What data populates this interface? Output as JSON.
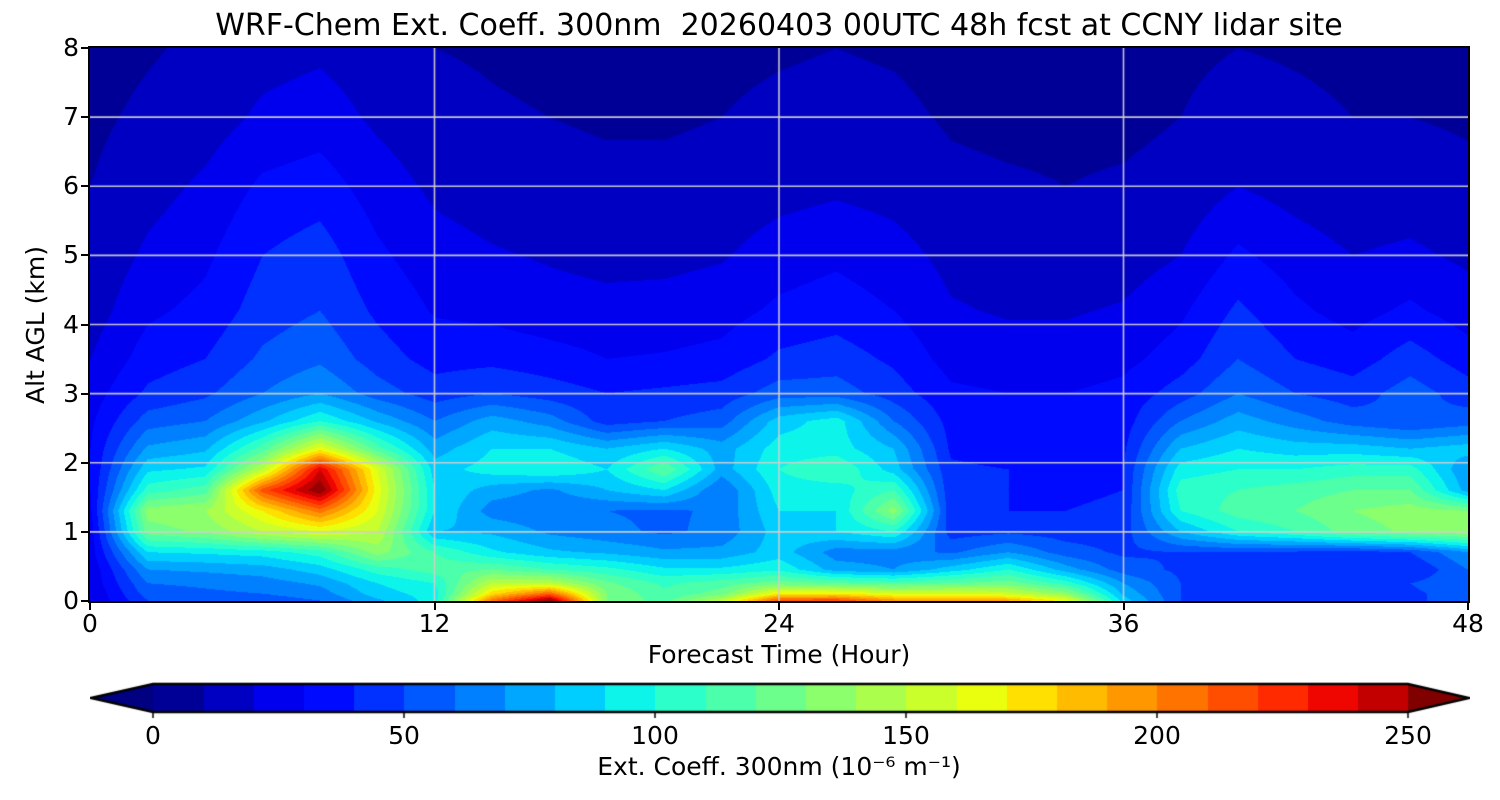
{
  "title": "WRF-Chem Ext. Coeff. 300nm  20260403 00UTC 48h fcst at CCNY lidar site",
  "axes": {
    "xlabel": "Forecast Time (Hour)",
    "ylabel": "Alt AGL (km)",
    "x_ticks": [
      0,
      12,
      24,
      36,
      48
    ],
    "y_ticks": [
      0,
      1,
      2,
      3,
      4,
      5,
      6,
      7,
      8
    ]
  },
  "colorbar": {
    "label": "Ext. Coeff. 300nm  (10⁻⁶ m⁻¹)",
    "ticks": [
      0,
      50,
      100,
      150,
      200,
      250
    ],
    "tick_min": 0,
    "tick_max": 250,
    "vmin": 0,
    "vmax": 260,
    "level_step": 10,
    "colormap": "jet",
    "extend": "both",
    "under_color": "#000080",
    "over_color": "#800000"
  },
  "chart_data": {
    "type": "heatmap",
    "title": "WRF-Chem Ext. Coeff. 300nm  20260403 00UTC 48h fcst at CCNY lidar site",
    "xlabel": "Forecast Time (Hour)",
    "ylabel": "Alt AGL (km)",
    "xlim": [
      0,
      48
    ],
    "ylim": [
      0,
      8
    ],
    "grid": true,
    "grid_x": [
      12,
      24,
      36
    ],
    "grid_y": [
      1,
      2,
      3,
      4,
      5,
      6,
      7
    ],
    "units": "10^-6 m^-1",
    "x": [
      0,
      2,
      4,
      6,
      8,
      10,
      12,
      14,
      16,
      18,
      20,
      22,
      24,
      26,
      28,
      30,
      32,
      34,
      36,
      38,
      40,
      42,
      44,
      46,
      48
    ],
    "y": [
      0,
      0.1,
      0.25,
      0.45,
      0.7,
      1.0,
      1.3,
      1.6,
      1.9,
      2.2,
      2.6,
      3.0,
      3.5,
      4.2,
      5.0,
      6.0,
      7.0,
      8.0
    ],
    "values_layout": "rows follow y (altitude km, ascending), columns follow x (forecast hour)",
    "values": [
      [
        20,
        50,
        55,
        55,
        60,
        78,
        95,
        205,
        258,
        130,
        115,
        150,
        215,
        218,
        195,
        195,
        190,
        165,
        85,
        50,
        48,
        45,
        45,
        48,
        55
      ],
      [
        20,
        55,
        58,
        60,
        65,
        85,
        95,
        175,
        210,
        130,
        112,
        125,
        170,
        170,
        160,
        160,
        155,
        135,
        78,
        50,
        48,
        45,
        45,
        48,
        55
      ],
      [
        22,
        60,
        62,
        65,
        72,
        90,
        100,
        150,
        150,
        122,
        108,
        115,
        125,
        120,
        115,
        120,
        125,
        105,
        70,
        50,
        47,
        45,
        45,
        50,
        58
      ],
      [
        22,
        70,
        72,
        75,
        85,
        105,
        115,
        120,
        110,
        103,
        92,
        92,
        98,
        75,
        70,
        85,
        100,
        75,
        55,
        48,
        45,
        42,
        40,
        40,
        60
      ],
      [
        25,
        90,
        92,
        95,
        105,
        135,
        110,
        92,
        82,
        78,
        72,
        73,
        85,
        65,
        65,
        58,
        70,
        55,
        48,
        50,
        50,
        48,
        45,
        50,
        70
      ],
      [
        25,
        125,
        132,
        150,
        160,
        150,
        80,
        78,
        68,
        63,
        58,
        63,
        85,
        90,
        100,
        45,
        48,
        45,
        45,
        80,
        100,
        110,
        125,
        132,
        138
      ],
      [
        28,
        135,
        140,
        170,
        205,
        160,
        90,
        65,
        62,
        60,
        58,
        62,
        90,
        90,
        135,
        42,
        40,
        40,
        42,
        100,
        115,
        120,
        130,
        135,
        130
      ],
      [
        30,
        105,
        115,
        215,
        260,
        165,
        90,
        75,
        68,
        80,
        90,
        60,
        95,
        95,
        110,
        42,
        40,
        38,
        40,
        105,
        110,
        115,
        120,
        120,
        75
      ],
      [
        30,
        88,
        92,
        150,
        240,
        160,
        85,
        95,
        100,
        90,
        120,
        75,
        100,
        110,
        85,
        42,
        40,
        38,
        40,
        95,
        100,
        100,
        105,
        105,
        70
      ],
      [
        30,
        72,
        78,
        115,
        165,
        115,
        75,
        90,
        90,
        80,
        90,
        75,
        95,
        95,
        80,
        38,
        35,
        35,
        38,
        80,
        90,
        85,
        85,
        80,
        85
      ],
      [
        28,
        55,
        60,
        78,
        100,
        78,
        60,
        75,
        65,
        45,
        50,
        55,
        85,
        95,
        60,
        36,
        33,
        33,
        35,
        60,
        75,
        65,
        55,
        50,
        55
      ],
      [
        25,
        42,
        48,
        60,
        70,
        55,
        45,
        50,
        45,
        40,
        42,
        44,
        55,
        55,
        45,
        32,
        30,
        30,
        33,
        45,
        60,
        50,
        45,
        55,
        45
      ],
      [
        20,
        35,
        40,
        52,
        58,
        45,
        36,
        37,
        34,
        30,
        31,
        33,
        42,
        45,
        38,
        26,
        24,
        24,
        27,
        35,
        50,
        40,
        35,
        45,
        35
      ],
      [
        15,
        28,
        33,
        45,
        50,
        38,
        29,
        27,
        24,
        23,
        24,
        26,
        32,
        35,
        30,
        21,
        19,
        19,
        21,
        28,
        42,
        32,
        26,
        32,
        25
      ],
      [
        12,
        22,
        28,
        40,
        45,
        32,
        24,
        21,
        19,
        17,
        17,
        19,
        25,
        28,
        24,
        17,
        15,
        14,
        15,
        20,
        32,
        25,
        20,
        22,
        18
      ],
      [
        10,
        16,
        22,
        32,
        35,
        25,
        18,
        15,
        13,
        12,
        12,
        13,
        16,
        18,
        16,
        12,
        11,
        10,
        11,
        13,
        20,
        16,
        13,
        14,
        12
      ],
      [
        8,
        12,
        15,
        22,
        25,
        18,
        13,
        11,
        10,
        9,
        9,
        10,
        12,
        13,
        12,
        9,
        8,
        8,
        8,
        10,
        14,
        12,
        10,
        10,
        9
      ],
      [
        6,
        9,
        12,
        16,
        18,
        14,
        10,
        9,
        8,
        7,
        7,
        8,
        9,
        10,
        9,
        7,
        6,
        6,
        7,
        8,
        10,
        9,
        8,
        8,
        7
      ]
    ]
  }
}
